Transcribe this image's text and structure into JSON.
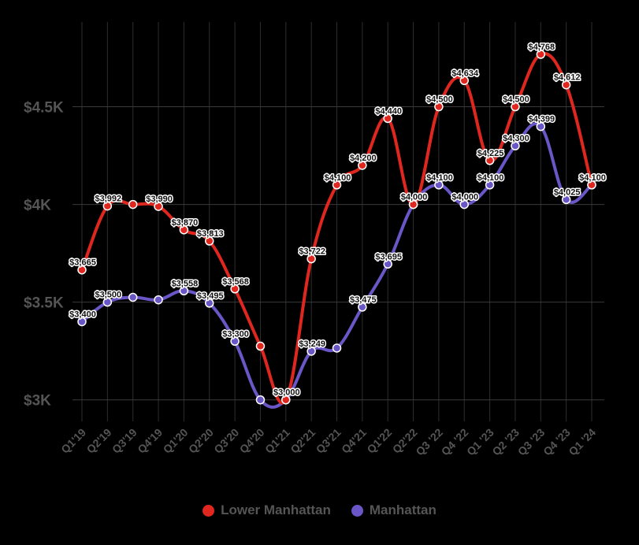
{
  "chart_data": {
    "type": "line",
    "categories": [
      "Q1'19",
      "Q2'19",
      "Q3'19",
      "Q4'19",
      "Q1'20",
      "Q2'20",
      "Q3'20",
      "Q4'20",
      "Q1'21",
      "Q2'21",
      "Q3'21",
      "Q4'21",
      "Q1'22",
      "Q2'22",
      "Q3 '22",
      "Q4 '22",
      "Q1 '23",
      "Q2 '23",
      "Q3 '23",
      "Q4 '23",
      "Q1 '24"
    ],
    "series": [
      {
        "name": "Lower Manhattan",
        "color": "#e0271f",
        "values": [
          3665,
          3992,
          4000,
          3990,
          3870,
          3813,
          3568,
          3275,
          3000,
          3722,
          4100,
          4200,
          4440,
          4000,
          4500,
          4634,
          4225,
          4500,
          4768,
          4612,
          4100
        ],
        "labels": [
          "$3,665",
          "$3,992",
          "",
          "$3,990",
          "$3,870",
          "$3,813",
          "$3,568",
          "",
          "$3,000",
          "$3,722",
          "$4,100",
          "$4,200",
          "$4,440",
          "$4,000",
          "$4,500",
          "$4,634",
          "$4,225",
          "$4,500",
          "$4,768",
          "$4,612",
          "$4,100"
        ]
      },
      {
        "name": "Manhattan",
        "color": "#6b56c7",
        "values": [
          3400,
          3500,
          3525,
          3512,
          3558,
          3495,
          3300,
          3000,
          3000,
          3249,
          3265,
          3475,
          3695,
          4000,
          4100,
          4000,
          4100,
          4300,
          4399,
          4025,
          4100
        ],
        "labels": [
          "$3,400",
          "$3,500",
          "",
          "",
          "$3,558",
          "$3,495",
          "$3,300",
          "",
          "",
          "$3,249",
          "",
          "$3,475",
          "$3,695",
          "$4,000",
          "$4,100",
          "$4,000",
          "$4,100",
          "$4,300",
          "$4,399",
          "$4,025",
          "$4,100"
        ]
      }
    ],
    "yticks": [
      {
        "value": 3000,
        "label": "$3K"
      },
      {
        "value": 3500,
        "label": "$3.5K"
      },
      {
        "value": 4000,
        "label": "$4K"
      },
      {
        "value": 4500,
        "label": "$4.5K"
      }
    ],
    "ylim": [
      2870,
      4885
    ],
    "grid": true,
    "legend_position": "bottom"
  }
}
